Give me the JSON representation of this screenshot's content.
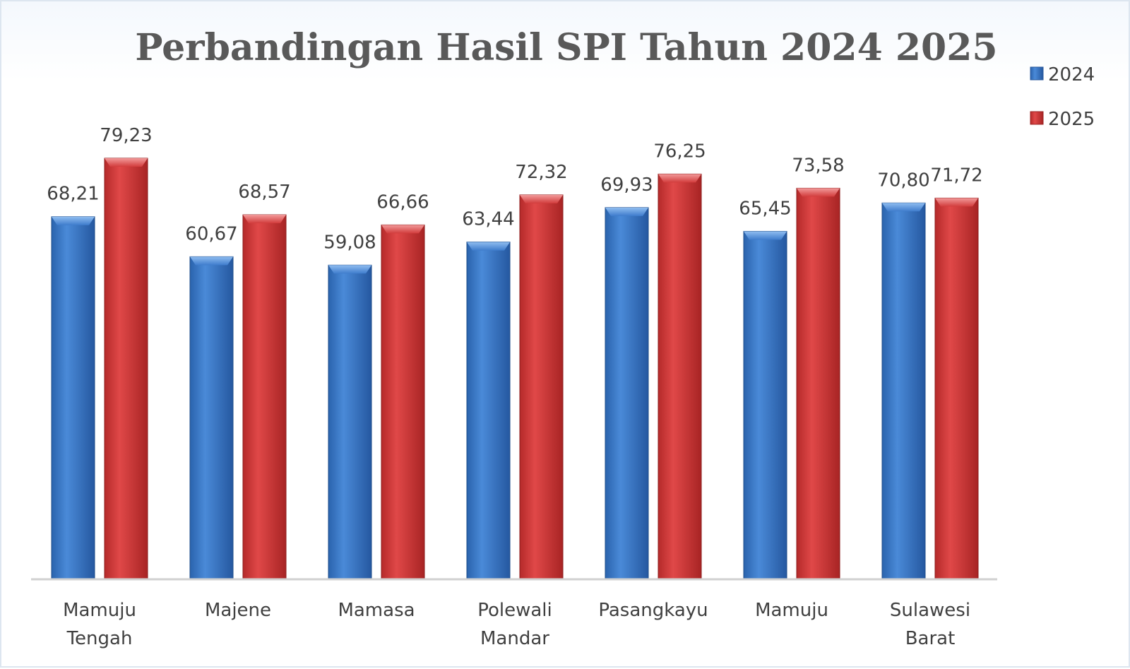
{
  "chart_data": {
    "type": "bar",
    "title": "Perbandingan Hasil SPI Tahun 2024 2025",
    "categories": [
      [
        "Mamuju",
        "Tengah"
      ],
      [
        "Majene"
      ],
      [
        "Mamasa"
      ],
      [
        "Polewali",
        "Mandar"
      ],
      [
        "Pasangkayu"
      ],
      [
        "Mamuju"
      ],
      [
        "Sulawesi",
        "Barat"
      ]
    ],
    "series": [
      {
        "name": "2024",
        "color": "#3a78c6",
        "values": [
          68.21,
          60.67,
          59.08,
          63.44,
          69.93,
          65.45,
          70.8
        ],
        "labels": [
          "68,21",
          "60,67",
          "59,08",
          "63,44",
          "69,93",
          "65,45",
          "70,80"
        ]
      },
      {
        "name": "2025",
        "color": "#d63a3a",
        "values": [
          79.23,
          68.57,
          66.66,
          72.32,
          76.25,
          73.58,
          71.72
        ],
        "labels": [
          "79,23",
          "68,57",
          "66,66",
          "72,32",
          "76,25",
          "73,58",
          "71,72"
        ]
      }
    ],
    "legend_position": "top-right",
    "gridlines": false,
    "value_axis_visible": false
  }
}
